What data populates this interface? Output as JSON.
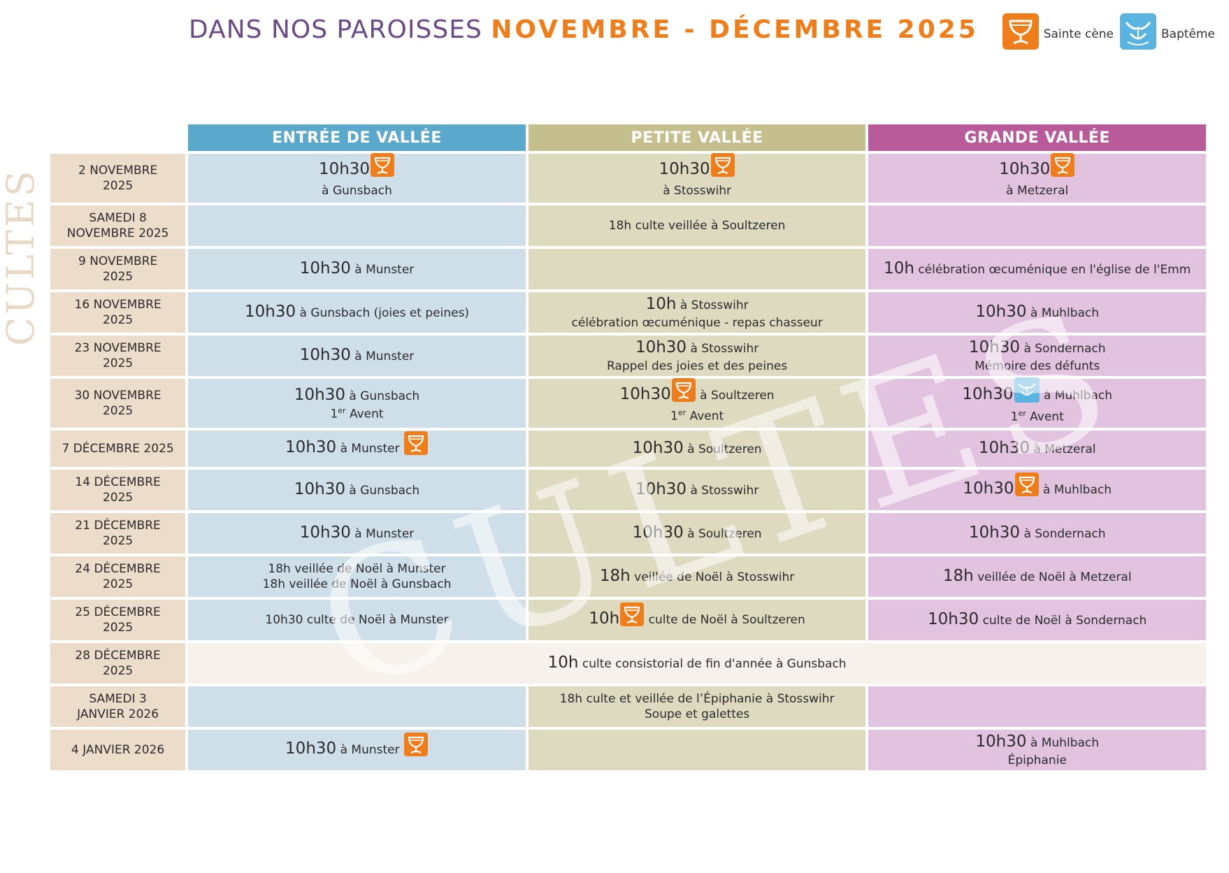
{
  "title": {
    "part1": "DANS NOS PAROISSES",
    "part2": "NOVEMBRE - DÉCEMBRE 2025"
  },
  "legend": {
    "communion_label": "Sainte cène",
    "baptism_label": "Baptême"
  },
  "side_label": "CULTES",
  "watermark": "CULTES",
  "columns": [
    "ENTRÉE DE VALLÉE",
    "PETITE VALLÉE",
    "GRANDE VALLÉE"
  ],
  "colors": {
    "entree": "#5aa8cb",
    "petite": "#c4bf8c",
    "grande": "#b95b9b",
    "accent": "#ef7d1a",
    "title_purple": "#6b4a8a"
  },
  "rows": [
    {
      "date": [
        "2 NOVEMBRE",
        "2025"
      ],
      "entree": {
        "time": "10h30",
        "text": "",
        "line2": "à Gunsbach",
        "icon": "communion-icon"
      },
      "petite": {
        "time": "10h30",
        "text": "",
        "line2": "à Stosswihr",
        "icon": "communion-icon"
      },
      "grande": {
        "time": "10h30",
        "text": "",
        "line2": "à Metzeral",
        "icon": "communion-icon"
      }
    },
    {
      "date": [
        "SAMEDI 8",
        "NOVEMBRE 2025"
      ],
      "entree": null,
      "petite": {
        "time": "",
        "text": "18h culte veillée à Soultzeren",
        "line2": ""
      },
      "grande": null
    },
    {
      "date": [
        "9 NOVEMBRE",
        "2025"
      ],
      "entree": {
        "time": "10h30",
        "text": "à Munster",
        "line2": ""
      },
      "petite": null,
      "grande": {
        "time": "10h",
        "text": "célébration œcuménique en l'église de l'Emm",
        "line2": ""
      }
    },
    {
      "date": [
        "16 NOVEMBRE",
        "2025"
      ],
      "entree": {
        "time": "10h30",
        "text": "à Gunsbach  (joies et peines)",
        "line2": ""
      },
      "petite": {
        "time": "10h",
        "text": "à Stosswihr",
        "line2": "célébration œcuménique - repas chasseur"
      },
      "grande": {
        "time": "10h30",
        "text": "à Muhlbach",
        "line2": ""
      }
    },
    {
      "date": [
        "23 NOVEMBRE",
        "2025"
      ],
      "entree": {
        "time": "10h30",
        "text": "à Munster",
        "line2": ""
      },
      "petite": {
        "time": "10h30",
        "text": "à Stosswihr",
        "line2": "Rappel des joies et des peines"
      },
      "grande": {
        "time": "10h30",
        "text": "à Sondernach",
        "line2": "Mémoire des défunts"
      }
    },
    {
      "date": [
        "30 NOVEMBRE",
        "2025"
      ],
      "entree": {
        "time": "10h30",
        "text": "à Gunsbach",
        "line2": "Avent",
        "ordinal": "1",
        "ordinal_sup": "er"
      },
      "petite": {
        "time": "10h30",
        "text": "à Soultzeren",
        "line2": "Avent",
        "ordinal": "1",
        "ordinal_sup": "er",
        "icon": "communion-icon"
      },
      "grande": {
        "time": "10h30",
        "text": "à Muhlbach",
        "line2": "Avent",
        "ordinal": "1",
        "ordinal_sup": "er",
        "icon": "baptism-icon"
      }
    },
    {
      "date": [
        "7 DÉCEMBRE 2025"
      ],
      "entree": {
        "time": "10h30",
        "text": "à Munster",
        "line2": "",
        "icon_after": "communion-icon"
      },
      "petite": {
        "time": "10h30",
        "text": "à Soultzeren",
        "line2": ""
      },
      "grande": {
        "time": "10h30",
        "text": "à Metzeral",
        "line2": ""
      }
    },
    {
      "date": [
        "14 DÉCEMBRE",
        "2025"
      ],
      "entree": {
        "time": "10h30",
        "text": "à Gunsbach",
        "line2": ""
      },
      "petite": {
        "time": "10h30",
        "text": "à Stosswihr",
        "line2": ""
      },
      "grande": {
        "time": "10h30",
        "text": "à Muhlbach",
        "line2": "",
        "icon": "communion-icon"
      }
    },
    {
      "date": [
        "21 DÉCEMBRE",
        "2025"
      ],
      "entree": {
        "time": "10h30",
        "text": "à Munster",
        "line2": ""
      },
      "petite": {
        "time": "10h30",
        "text": "à Soultzeren",
        "line2": ""
      },
      "grande": {
        "time": "10h30",
        "text": "à Sondernach",
        "line2": ""
      }
    },
    {
      "date": [
        "24 DÉCEMBRE",
        "2025"
      ],
      "entree": {
        "time": "",
        "text": "18h veillée de Noël à Munster",
        "line2": "18h veillée de Noël à Gunsbach"
      },
      "petite": {
        "time": "18h",
        "text": "veillée de Noël à Stosswihr",
        "line2": ""
      },
      "grande": {
        "time": "18h",
        "text": "veillée de Noël à Metzeral",
        "line2": ""
      }
    },
    {
      "date": [
        "25 DÉCEMBRE",
        "2025"
      ],
      "entree": {
        "time": "",
        "text": "10h30 culte de Noël à Munster",
        "line2": ""
      },
      "petite": {
        "time": "10h",
        "text": "culte de Noël à Soultzeren",
        "line2": "",
        "icon": "communion-icon"
      },
      "grande": {
        "time": "10h30",
        "text": "culte de Noël à Sondernach",
        "line2": ""
      }
    },
    {
      "date": [
        "28 DÉCEMBRE",
        "2025"
      ],
      "span": {
        "time": "10h",
        "text": "culte consistorial de fin d'année à Gunsbach"
      }
    },
    {
      "date": [
        "SAMEDI 3",
        "JANVIER 2026"
      ],
      "entree": null,
      "petite": {
        "time": "",
        "text": "18h culte et veillée de l’Épiphanie à Stosswihr",
        "line2": "Soupe et galettes"
      },
      "grande": null
    },
    {
      "date": [
        "4 JANVIER 2026"
      ],
      "entree": {
        "time": "10h30",
        "text": "à Munster",
        "line2": "",
        "icon_after": "communion-icon"
      },
      "petite": null,
      "grande": {
        "time": "10h30",
        "text": "à Muhlbach",
        "line2": "Épiphanie"
      }
    }
  ]
}
